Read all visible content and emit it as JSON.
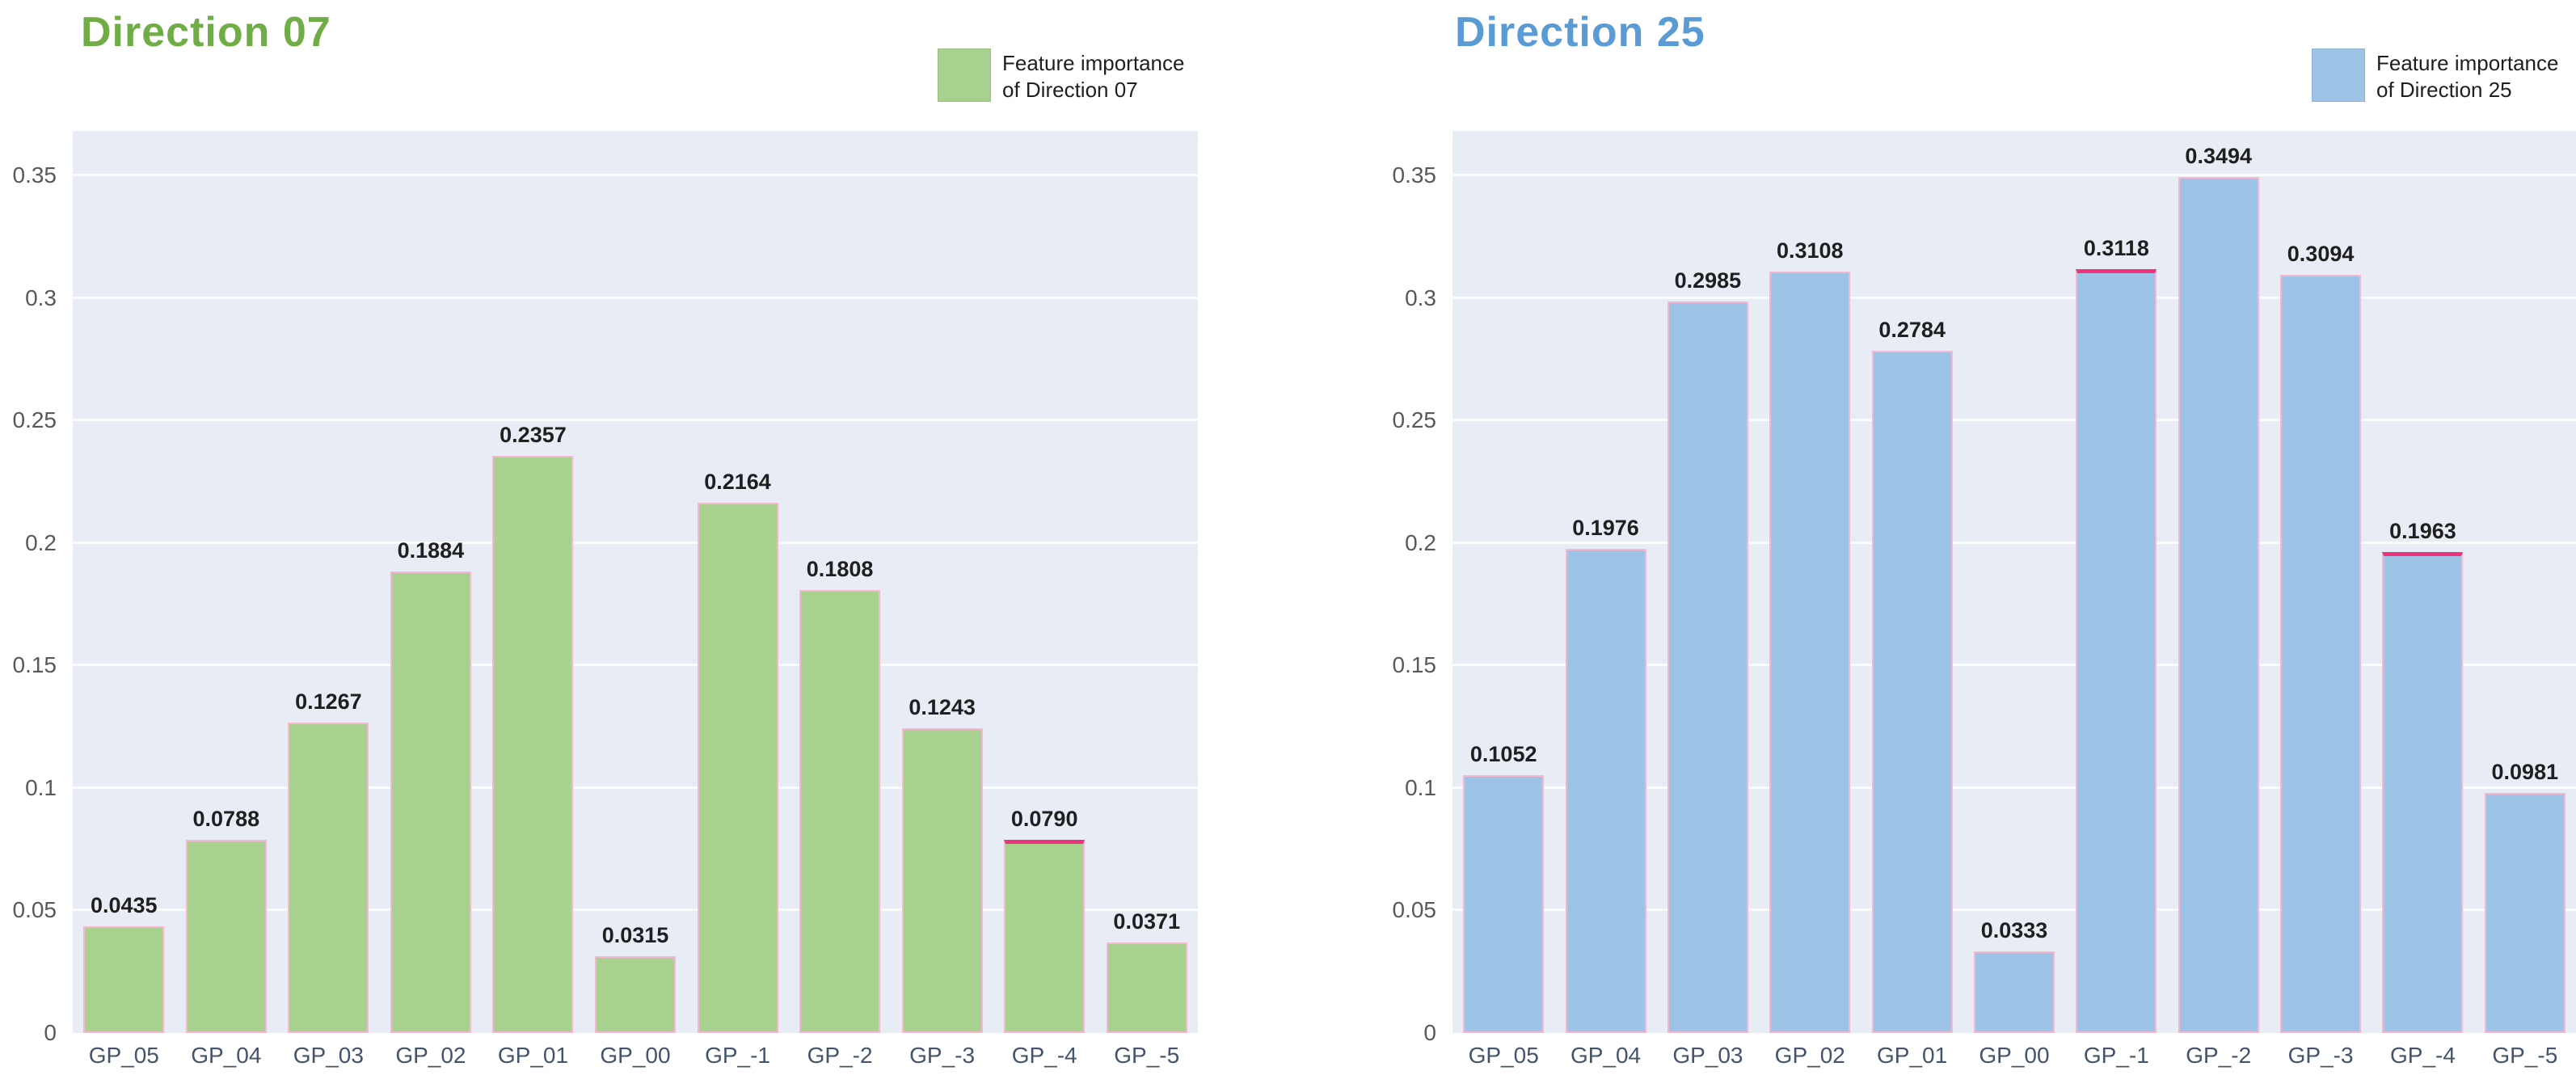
{
  "page": {
    "background": "#ffffff"
  },
  "style": {
    "plot_bg": "#e8edf5",
    "grid_color": "#fafcfe",
    "ytick_color": "#595959",
    "xtick_color": "#44546a",
    "value_label_color": "#1f1f1f",
    "bar_edge_color": "#f7b6d2",
    "accent_edge_color": "#f0327d"
  },
  "chart_data": [
    {
      "type": "bar",
      "title": "Direction 07",
      "title_color": "#70ad47",
      "bar_color": "#a8d08e",
      "legend_lines": [
        "Feature importance",
        "of Direction 07"
      ],
      "categories": [
        "GP_05",
        "GP_04",
        "GP_03",
        "GP_02",
        "GP_01",
        "GP_00",
        "GP_-1",
        "GP_-2",
        "GP_-3",
        "GP_-4",
        "GP_-5"
      ],
      "values": [
        0.0435,
        0.0788,
        0.1267,
        0.1884,
        0.2357,
        0.0315,
        0.2164,
        0.1808,
        0.1243,
        0.079,
        0.0371
      ],
      "value_labels": [
        "0.0435",
        "0.0788",
        "0.1267",
        "0.1884",
        "0.2357",
        "0.0315",
        "0.2164",
        "0.1808",
        "0.1243",
        "0.0790",
        "0.0371"
      ],
      "accent_top": [
        9
      ],
      "ylim": [
        0,
        0.368
      ],
      "grid": true,
      "legend_position": "top-right",
      "yticks": [
        {
          "label": "0.35",
          "v": 0.35
        },
        {
          "label": "0.3",
          "v": 0.3
        },
        {
          "label": "0.25",
          "v": 0.25
        },
        {
          "label": "0.2",
          "v": 0.2
        },
        {
          "label": "0.15",
          "v": 0.15
        },
        {
          "label": "0.1",
          "v": 0.1
        },
        {
          "label": "0.05",
          "v": 0.05
        },
        {
          "label": "0",
          "v": 0
        }
      ]
    },
    {
      "type": "bar",
      "title": "Direction 25",
      "title_color": "#5b9bd5",
      "bar_color": "#9dc3e6",
      "legend_lines": [
        "Feature importance",
        "of Direction 25"
      ],
      "categories": [
        "GP_05",
        "GP_04",
        "GP_03",
        "GP_02",
        "GP_01",
        "GP_00",
        "GP_-1",
        "GP_-2",
        "GP_-3",
        "GP_-4",
        "GP_-5"
      ],
      "values": [
        0.1052,
        0.1976,
        0.2985,
        0.3108,
        0.2784,
        0.0333,
        0.3118,
        0.3494,
        0.3094,
        0.1963,
        0.0981
      ],
      "value_labels": [
        "0.1052",
        "0.1976",
        "0.2985",
        "0.3108",
        "0.2784",
        "0.0333",
        "0.3118",
        "0.3494",
        "0.3094",
        "0.1963",
        "0.0981"
      ],
      "accent_top": [
        6,
        9
      ],
      "ylim": [
        0,
        0.368
      ],
      "grid": true,
      "legend_position": "top-right",
      "yticks": [
        {
          "label": "0.35",
          "v": 0.35
        },
        {
          "label": "0.3",
          "v": 0.3
        },
        {
          "label": "0.25",
          "v": 0.25
        },
        {
          "label": "0.2",
          "v": 0.2
        },
        {
          "label": "0.15",
          "v": 0.15
        },
        {
          "label": "0.1",
          "v": 0.1
        },
        {
          "label": "0.05",
          "v": 0.05
        },
        {
          "label": "0",
          "v": 0
        }
      ]
    }
  ]
}
